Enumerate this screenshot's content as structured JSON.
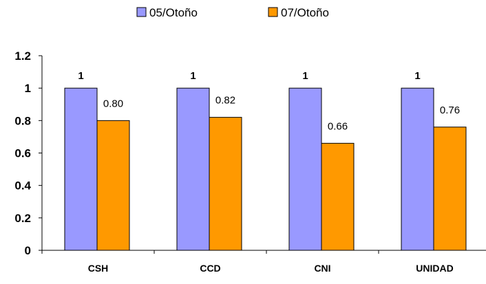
{
  "chart_data": {
    "type": "bar",
    "categories": [
      "CSH",
      "CCD",
      "CNI",
      "UNIDAD"
    ],
    "series": [
      {
        "name": "05/Otoño",
        "values": [
          1,
          1,
          1,
          1
        ],
        "labels": [
          "1",
          "1",
          "1",
          "1"
        ],
        "color": "#9999ff",
        "label_style": "bold"
      },
      {
        "name": "07/Otoño",
        "values": [
          0.8,
          0.82,
          0.66,
          0.76
        ],
        "labels": [
          "0.80",
          "0.82",
          "0.66",
          "0.76"
        ],
        "color": "#ff9900",
        "label_style": "normal"
      }
    ],
    "yticks": [
      "0",
      "0.2",
      "0.4",
      "0.6",
      "0.8",
      "1",
      "1.2"
    ],
    "ylim": [
      0,
      1.2
    ],
    "grid": false,
    "legend_position": "top-center",
    "title": "",
    "xlabel": "",
    "ylabel": ""
  }
}
